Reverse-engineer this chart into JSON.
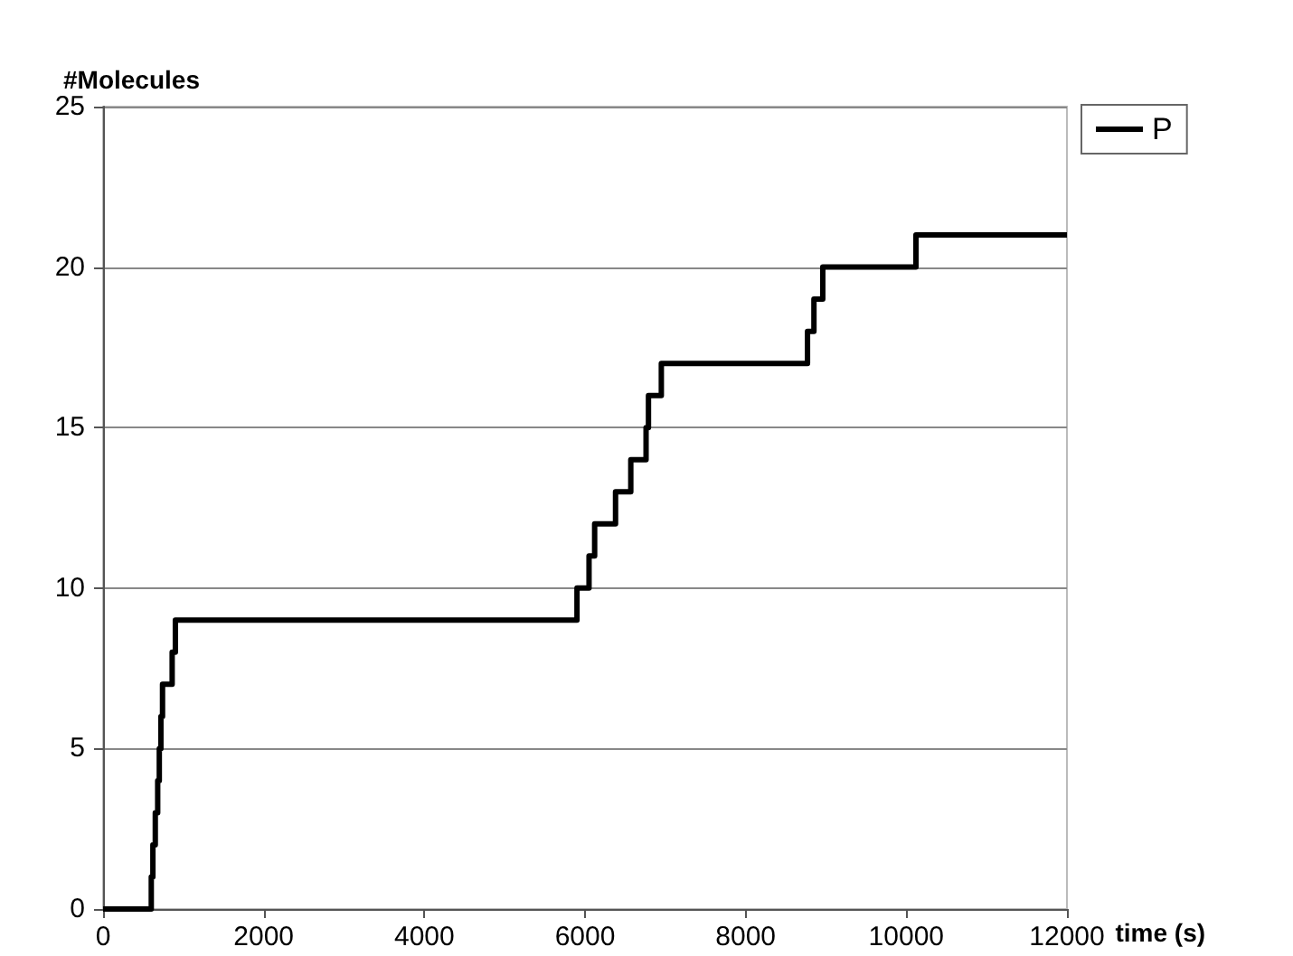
{
  "chart_data": {
    "type": "step",
    "xlabel": "time (s)",
    "ylabel": "#Molecules",
    "x": [
      0,
      600,
      620,
      650,
      680,
      700,
      720,
      740,
      860,
      900,
      5900,
      6050,
      6120,
      6380,
      6570,
      6760,
      6790,
      6950,
      8770,
      8850,
      8960,
      10120,
      12000
    ],
    "series": [
      {
        "name": "P",
        "color": "#000000",
        "values": [
          0,
          1,
          2,
          3,
          4,
          5,
          6,
          7,
          8,
          9,
          10,
          11,
          12,
          13,
          14,
          15,
          16,
          17,
          18,
          19,
          20,
          21,
          21
        ]
      }
    ],
    "xlim": [
      0,
      12000
    ],
    "xticks": [
      0,
      2000,
      4000,
      6000,
      8000,
      10000,
      12000
    ],
    "ylim": [
      0,
      25
    ],
    "yticks": [
      0,
      5,
      10,
      15,
      20,
      25
    ],
    "grid": "y",
    "legend": "top right",
    "marker": "none",
    "line_style": "solid"
  }
}
